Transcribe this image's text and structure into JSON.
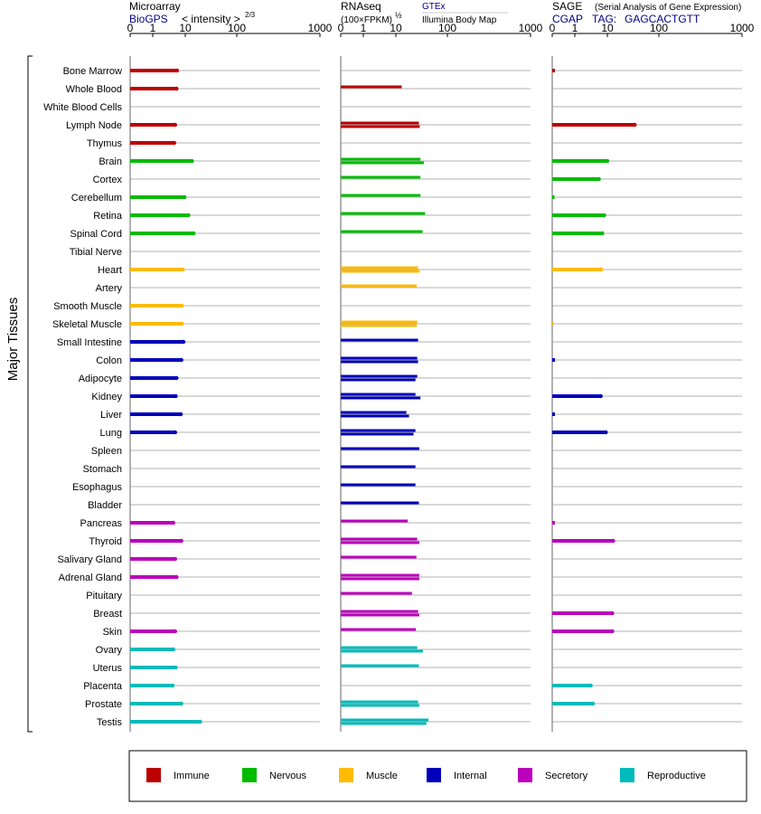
{
  "colors": {
    "Immune": "#bb0000",
    "Nervous": "#00bb00",
    "Muscle": "#ffbb00",
    "Internal": "#0000bb",
    "Secretory": "#bb00bb",
    "Reproductive": "#00bbbb"
  },
  "chart_data": {
    "type": "bar",
    "orientation": "horizontal",
    "group_label": "Major Tissues",
    "tick_labels": [
      "0",
      "1",
      "10",
      "100",
      "1000"
    ],
    "categories": [
      "Bone Marrow",
      "Whole Blood",
      "White Blood Cells",
      "Lymph Node",
      "Thymus",
      "Brain",
      "Cortex",
      "Cerebellum",
      "Retina",
      "Spinal Cord",
      "Tibial Nerve",
      "Heart",
      "Artery",
      "Smooth Muscle",
      "Skeletal Muscle",
      "Small Intestine",
      "Colon",
      "Adipocyte",
      "Kidney",
      "Liver",
      "Lung",
      "Spleen",
      "Stomach",
      "Esophagus",
      "Bladder",
      "Pancreas",
      "Thyroid",
      "Salivary Gland",
      "Adrenal Gland",
      "Pituitary",
      "Breast",
      "Skin",
      "Ovary",
      "Uterus",
      "Placenta",
      "Prostate",
      "Testis"
    ],
    "systems": [
      "Immune",
      "Immune",
      "Immune",
      "Immune",
      "Immune",
      "Nervous",
      "Nervous",
      "Nervous",
      "Nervous",
      "Nervous",
      "Nervous",
      "Muscle",
      "Muscle",
      "Muscle",
      "Muscle",
      "Internal",
      "Internal",
      "Internal",
      "Internal",
      "Internal",
      "Internal",
      "Internal",
      "Internal",
      "Internal",
      "Internal",
      "Secretory",
      "Secretory",
      "Secretory",
      "Secretory",
      "Secretory",
      "Secretory",
      "Secretory",
      "Reproductive",
      "Reproductive",
      "Reproductive",
      "Reproductive",
      "Reproductive"
    ],
    "panels": [
      {
        "name": "Microarray",
        "source": "BioGPS",
        "scale_label": "< intensity >",
        "scale_exponent": "2/3",
        "values": [
          [
            5.6
          ],
          [
            5.4
          ],
          [],
          [
            4.9
          ],
          [
            4.6
          ],
          [
            13.5
          ],
          [],
          [
            9.5
          ],
          [
            11.5
          ],
          [
            14.5
          ],
          [],
          [
            8.5
          ],
          [],
          [
            7.9
          ],
          [
            7.9
          ],
          [
            8.8
          ],
          [
            7.6
          ],
          [
            5.4
          ],
          [
            5.1
          ],
          [
            7.3
          ],
          [
            4.9
          ],
          [],
          [],
          [],
          [],
          [
            4.3
          ],
          [
            7.6
          ],
          [
            4.9
          ],
          [
            5.4
          ],
          [],
          [],
          [
            4.9
          ],
          [
            4.3
          ],
          [
            5.1
          ],
          [
            4.1
          ],
          [
            7.6
          ],
          [
            19.5
          ]
        ]
      },
      {
        "name": "RNAseq",
        "scale_label": "(100×FPKM)",
        "scale_exponent": "½",
        "source": "GTEx",
        "source_detail": "Illumina Body Map",
        "values": [
          [],
          [
            13
          ],
          [],
          [
            28,
            29
          ],
          [],
          [
            30,
            35
          ],
          [
            30
          ],
          [
            30
          ],
          [
            37
          ],
          [
            33
          ],
          [],
          [
            27,
            29
          ],
          [
            25.5
          ],
          [],
          [
            26,
            25.5
          ],
          [
            27
          ],
          [
            26,
            27
          ],
          [
            26,
            24
          ],
          [
            24,
            30
          ],
          [
            16,
            18
          ],
          [
            24,
            22
          ],
          [
            28.5
          ],
          [
            24
          ],
          [
            24
          ],
          [
            28
          ],
          [
            17
          ],
          [
            26,
            28.5
          ],
          [
            25
          ],
          [
            28.5,
            28.5
          ],
          [
            20.5
          ],
          [
            27,
            28.5
          ],
          [
            24.5
          ],
          [
            26,
            33.5
          ],
          [
            28
          ],
          [],
          [
            27,
            28.5
          ],
          [
            43,
            39
          ]
        ]
      },
      {
        "name": "SAGE",
        "subtitle": "(Serial Analysis of Gene Expression)",
        "source": "CGAP",
        "tag_label": "TAG:",
        "tag": "GAGCACTGTT",
        "values": [
          [
            0.12
          ],
          [],
          [],
          [
            34
          ],
          [],
          [
            10
          ],
          [
            5.5
          ],
          [
            0.1
          ],
          [
            8
          ],
          [
            7
          ],
          [],
          [
            6.5
          ],
          [],
          [],
          [
            0.06
          ],
          [],
          [
            0.12
          ],
          [],
          [
            6.3
          ],
          [
            0.12
          ],
          [
            9
          ],
          [],
          [],
          [],
          [],
          [
            0.12
          ],
          [
            13
          ],
          [],
          [],
          [],
          [
            12.5
          ],
          [
            12.5
          ],
          [],
          [],
          [
            3.1
          ],
          [
            3.6
          ],
          []
        ]
      }
    ],
    "legend": [
      "Immune",
      "Nervous",
      "Muscle",
      "Internal",
      "Secretory",
      "Reproductive"
    ],
    "xlim": [
      0,
      1000
    ]
  }
}
